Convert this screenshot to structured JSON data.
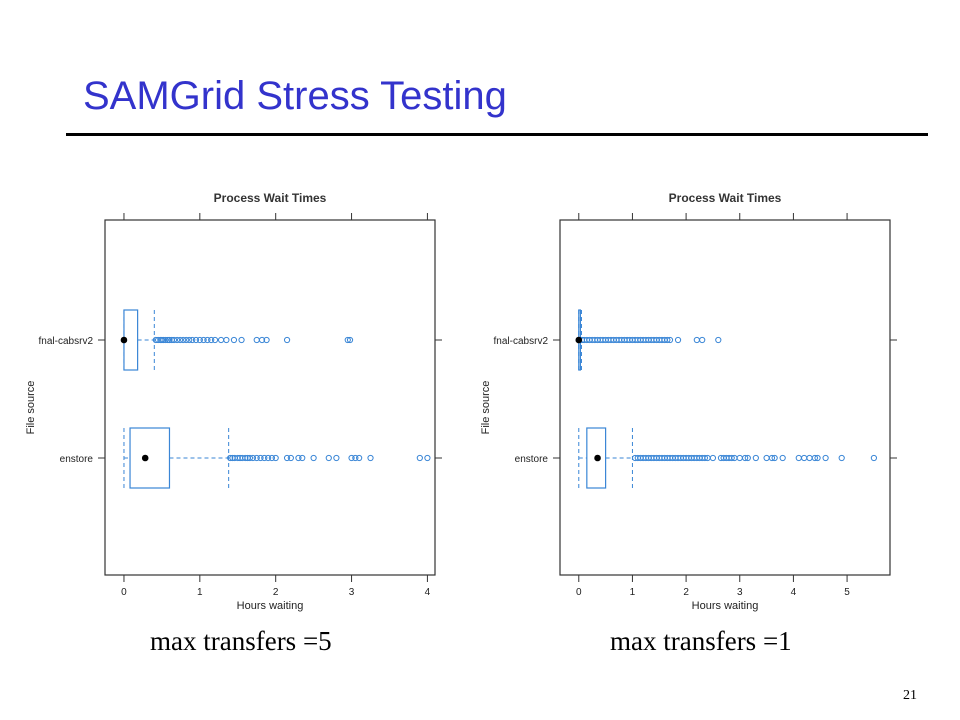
{
  "slide": {
    "title": "SAMGrid Stress Testing",
    "number": "21",
    "accent_color": "#3333cc",
    "chart_color": "#3a86d6"
  },
  "chart_data": [
    {
      "type": "boxplot",
      "title": "Process Wait Times",
      "xlabel": "Hours waiting",
      "ylabel": "File source",
      "caption": "max transfers =5",
      "xticks": [
        0,
        1,
        2,
        3,
        4
      ],
      "xlim": [
        -0.25,
        4.1
      ],
      "categories": [
        "fnal-cabsrv2",
        "enstore"
      ],
      "series": [
        {
          "name": "fnal-cabsrv2",
          "whisker_low": 0,
          "q1": 0,
          "median": 0,
          "q3": 0.18,
          "whisker_high": 0.4,
          "outliers": [
            0.42,
            0.45,
            0.48,
            0.5,
            0.52,
            0.55,
            0.58,
            0.6,
            0.63,
            0.66,
            0.7,
            0.74,
            0.78,
            0.82,
            0.86,
            0.9,
            0.95,
            1.0,
            1.05,
            1.1,
            1.15,
            1.2,
            1.28,
            1.35,
            1.45,
            1.55,
            1.75,
            1.82,
            1.88,
            2.15,
            2.95,
            2.98
          ]
        },
        {
          "name": "enstore",
          "whisker_low": 0,
          "q1": 0.08,
          "median": 0.28,
          "q3": 0.6,
          "whisker_high": 1.38,
          "outliers": [
            1.4,
            1.43,
            1.46,
            1.5,
            1.53,
            1.56,
            1.6,
            1.63,
            1.66,
            1.7,
            1.75,
            1.8,
            1.85,
            1.9,
            1.95,
            2.0,
            2.15,
            2.2,
            2.3,
            2.35,
            2.5,
            2.7,
            2.8,
            3.0,
            3.05,
            3.1,
            3.25,
            3.9,
            4.0
          ]
        }
      ]
    },
    {
      "type": "boxplot",
      "title": "Process Wait Times",
      "xlabel": "Hours waiting",
      "ylabel": "File source",
      "caption": "max transfers =1",
      "xticks": [
        0,
        1,
        2,
        3,
        4,
        5
      ],
      "xlim": [
        -0.35,
        5.8
      ],
      "categories": [
        "fnal-cabsrv2",
        "enstore"
      ],
      "series": [
        {
          "name": "fnal-cabsrv2",
          "whisker_low": 0,
          "q1": 0,
          "median": 0,
          "q3": 0.03,
          "whisker_high": 0.05,
          "outliers": [
            0.06,
            0.1,
            0.15,
            0.2,
            0.25,
            0.3,
            0.35,
            0.4,
            0.45,
            0.5,
            0.55,
            0.6,
            0.65,
            0.7,
            0.75,
            0.8,
            0.85,
            0.9,
            0.95,
            1.0,
            1.05,
            1.1,
            1.15,
            1.2,
            1.25,
            1.3,
            1.35,
            1.4,
            1.45,
            1.5,
            1.55,
            1.6,
            1.65,
            1.7,
            1.85,
            2.2,
            2.3,
            2.6
          ]
        },
        {
          "name": "enstore",
          "whisker_low": 0,
          "q1": 0.15,
          "median": 0.35,
          "q3": 0.5,
          "whisker_high": 1.0,
          "outliers": [
            1.05,
            1.1,
            1.15,
            1.2,
            1.25,
            1.3,
            1.35,
            1.4,
            1.45,
            1.5,
            1.55,
            1.6,
            1.65,
            1.7,
            1.75,
            1.8,
            1.85,
            1.9,
            1.95,
            2.0,
            2.05,
            2.1,
            2.15,
            2.2,
            2.25,
            2.3,
            2.35,
            2.4,
            2.5,
            2.65,
            2.7,
            2.75,
            2.8,
            2.85,
            2.9,
            3.0,
            3.1,
            3.15,
            3.3,
            3.5,
            3.6,
            3.65,
            3.8,
            4.1,
            4.2,
            4.3,
            4.4,
            4.45,
            4.6,
            4.9,
            5.5
          ]
        }
      ]
    }
  ]
}
